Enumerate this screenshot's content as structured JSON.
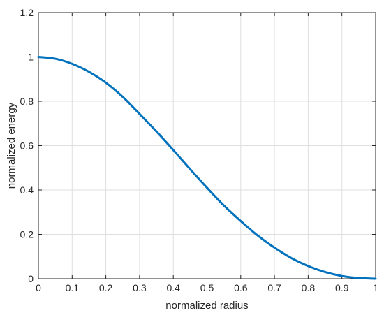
{
  "chart_data": {
    "type": "line",
    "title": "",
    "xlabel": "normalized radius",
    "ylabel": "normalized energy",
    "xlim": [
      0,
      1
    ],
    "ylim": [
      0,
      1.2
    ],
    "xticks": [
      0,
      0.1,
      0.2,
      0.3,
      0.4,
      0.5,
      0.6,
      0.7,
      0.8,
      0.9,
      1
    ],
    "xtick_labels": [
      "0",
      "0.1",
      "0.2",
      "0.3",
      "0.4",
      "0.5",
      "0.6",
      "0.7",
      "0.8",
      "0.9",
      "1"
    ],
    "yticks": [
      0,
      0.2,
      0.4,
      0.6,
      0.8,
      1,
      1.2
    ],
    "ytick_labels": [
      "0",
      "0.2",
      "0.4",
      "0.6",
      "0.8",
      "1",
      "1.2"
    ],
    "grid": true,
    "line_color": "#0072BD",
    "series": [
      {
        "x": [
          0,
          0.05,
          0.1,
          0.15,
          0.2,
          0.25,
          0.3,
          0.35,
          0.4,
          0.45,
          0.5,
          0.55,
          0.6,
          0.65,
          0.7,
          0.75,
          0.8,
          0.85,
          0.9,
          0.95,
          1
        ],
        "y": [
          1.0,
          0.992,
          0.969,
          0.933,
          0.884,
          0.82,
          0.743,
          0.664,
          0.58,
          0.494,
          0.41,
          0.33,
          0.26,
          0.195,
          0.14,
          0.093,
          0.057,
          0.03,
          0.012,
          0.003,
          0.0
        ]
      }
    ]
  }
}
